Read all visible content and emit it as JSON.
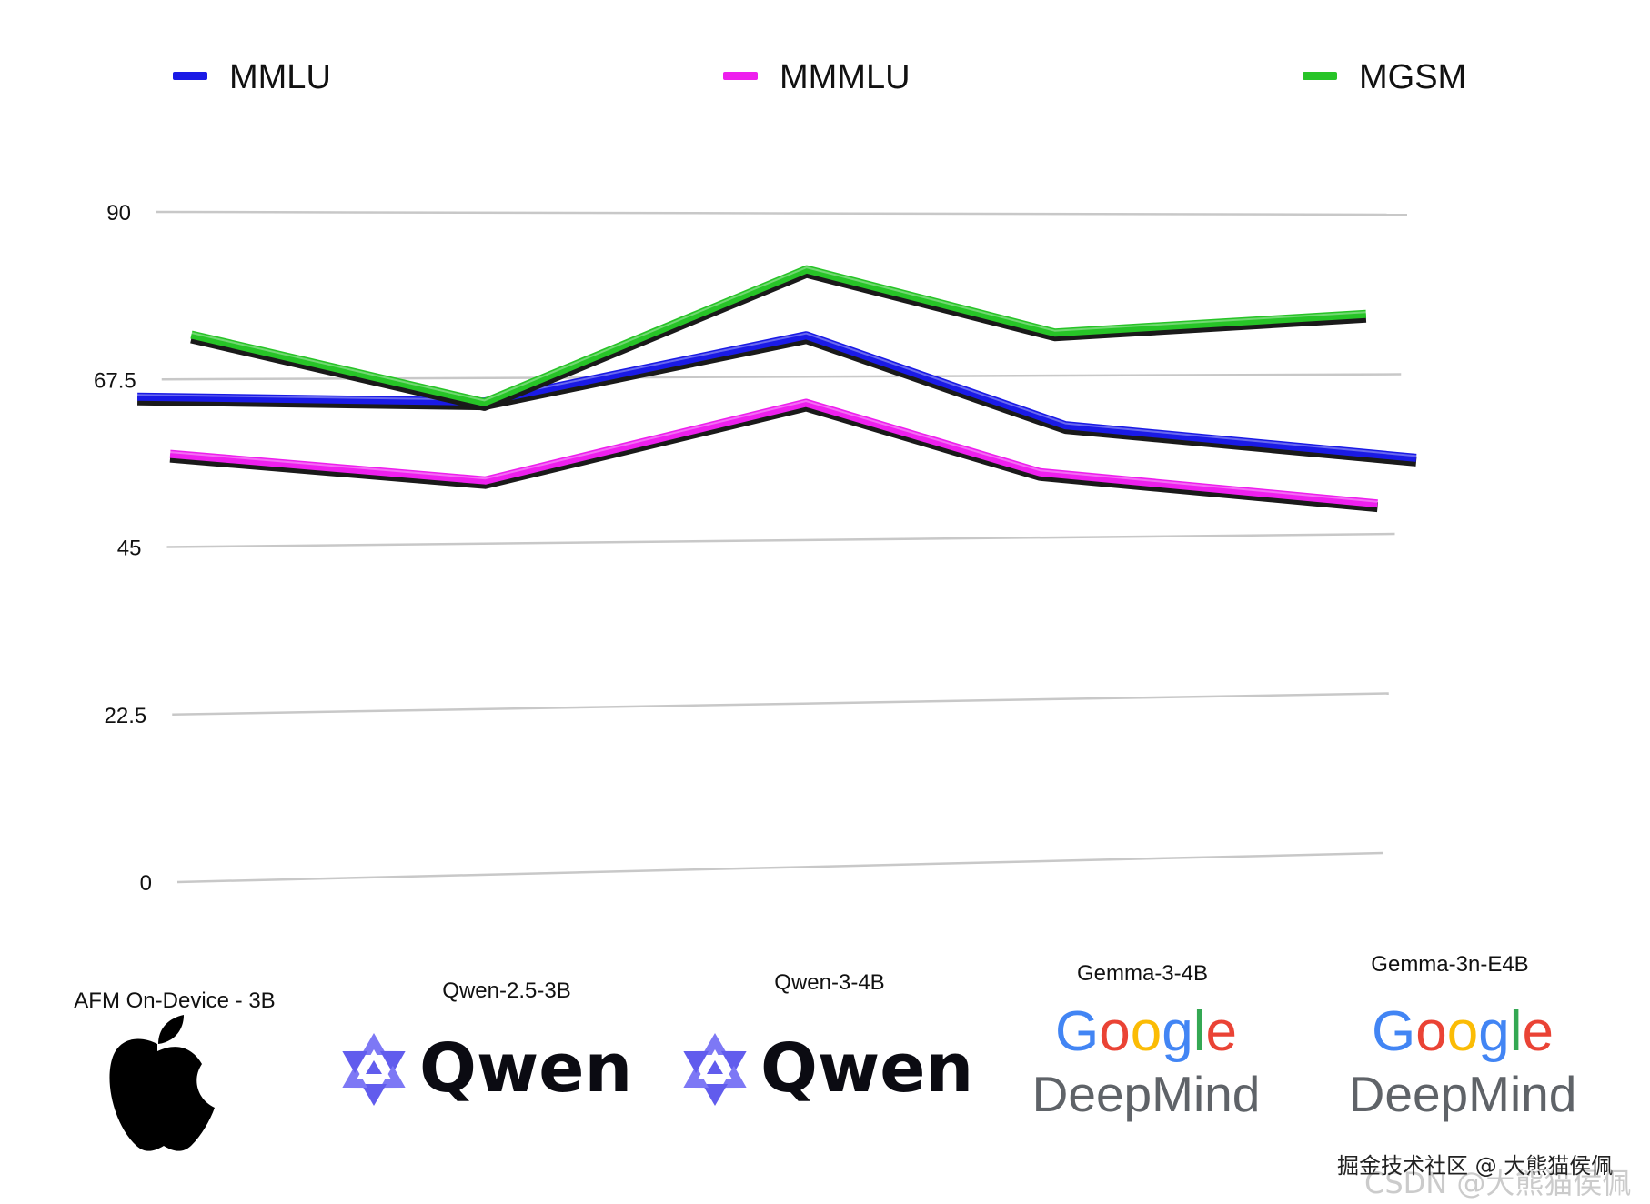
{
  "chart_data": {
    "type": "line",
    "title": "",
    "xlabel": "",
    "ylabel": "",
    "ylim": [
      0,
      90
    ],
    "yticks": [
      "0",
      "22.5",
      "45",
      "67.5",
      "90"
    ],
    "grid": true,
    "legend_position": "top",
    "categories": [
      "AFM On-Device - 3B",
      "Qwen-2.5-3B",
      "Qwen-3-4B",
      "Gemma-3-4B",
      "Gemma-3n-E4B"
    ],
    "category_logos": [
      "apple",
      "qwen",
      "qwen",
      "google-deepmind",
      "google-deepmind"
    ],
    "series": [
      {
        "name": "MMLU",
        "color": "#1a1ae6",
        "values": [
          65.2,
          64.3,
          73.2,
          60.6,
          55.7
        ]
      },
      {
        "name": "MMMLU",
        "color": "#ee1fee",
        "values": [
          57.5,
          53.6,
          63.9,
          54.1,
          49.3
        ]
      },
      {
        "name": "MGSM",
        "color": "#27c427",
        "values": [
          73.5,
          64.2,
          82.3,
          73.5,
          76.0
        ]
      }
    ]
  },
  "logos": {
    "qwen_word": "Qwen",
    "google_word": "Google",
    "deepmind_word": "DeepMind"
  },
  "watermark": {
    "line1": "掘金技术社区 @ 大熊猫侯佩",
    "line2": "CSDN @大熊猫侯佩"
  }
}
